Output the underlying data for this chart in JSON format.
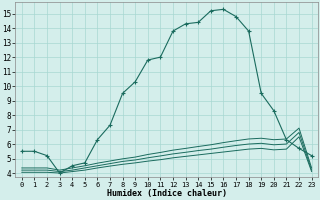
{
  "xlabel": "Humidex (Indice chaleur)",
  "bg_color": "#d4eeeb",
  "grid_color": "#a8d8d2",
  "line_color": "#1a6b5e",
  "xlim": [
    -0.5,
    23.5
  ],
  "ylim": [
    3.7,
    15.8
  ],
  "yticks": [
    4,
    5,
    6,
    7,
    8,
    9,
    10,
    11,
    12,
    13,
    14,
    15
  ],
  "xticks": [
    0,
    1,
    2,
    3,
    4,
    5,
    6,
    7,
    8,
    9,
    10,
    11,
    12,
    13,
    14,
    15,
    16,
    17,
    18,
    19,
    20,
    21,
    22,
    23
  ],
  "main_x": [
    0,
    1,
    2,
    3,
    4,
    5,
    6,
    7,
    8,
    9,
    10,
    11,
    12,
    13,
    14,
    15,
    16,
    17,
    18,
    19,
    20,
    21,
    22,
    23
  ],
  "main_y": [
    5.5,
    5.5,
    5.2,
    4.0,
    4.5,
    4.7,
    6.3,
    7.3,
    9.5,
    10.3,
    11.8,
    12.0,
    13.8,
    14.3,
    14.4,
    15.2,
    15.3,
    14.8,
    13.8,
    9.5,
    8.3,
    6.3,
    5.7,
    5.2
  ],
  "line2_x": [
    0,
    1,
    2,
    3,
    4,
    5,
    6,
    7,
    8,
    9,
    10,
    11,
    12,
    13,
    14,
    15,
    16,
    17,
    18,
    19,
    20,
    21,
    22,
    23
  ],
  "line2_y": [
    4.05,
    4.05,
    4.05,
    4.0,
    4.1,
    4.2,
    4.35,
    4.48,
    4.6,
    4.7,
    4.82,
    4.92,
    5.05,
    5.15,
    5.25,
    5.35,
    5.45,
    5.55,
    5.65,
    5.7,
    5.6,
    5.65,
    6.5,
    4.1
  ],
  "line3_x": [
    0,
    1,
    2,
    3,
    4,
    5,
    6,
    7,
    8,
    9,
    10,
    11,
    12,
    13,
    14,
    15,
    16,
    17,
    18,
    19,
    20,
    21,
    22,
    23
  ],
  "line3_y": [
    4.2,
    4.2,
    4.2,
    4.1,
    4.2,
    4.35,
    4.5,
    4.65,
    4.8,
    4.9,
    5.05,
    5.18,
    5.32,
    5.43,
    5.55,
    5.65,
    5.78,
    5.9,
    6.0,
    6.05,
    5.95,
    6.0,
    6.8,
    4.2
  ],
  "line4_x": [
    0,
    1,
    2,
    3,
    4,
    5,
    6,
    7,
    8,
    9,
    10,
    11,
    12,
    13,
    14,
    15,
    16,
    17,
    18,
    19,
    20,
    21,
    22,
    23
  ],
  "line4_y": [
    4.35,
    4.35,
    4.35,
    4.2,
    4.35,
    4.5,
    4.68,
    4.83,
    4.98,
    5.1,
    5.28,
    5.42,
    5.58,
    5.7,
    5.83,
    5.95,
    6.1,
    6.23,
    6.35,
    6.4,
    6.3,
    6.35,
    7.1,
    4.35
  ]
}
